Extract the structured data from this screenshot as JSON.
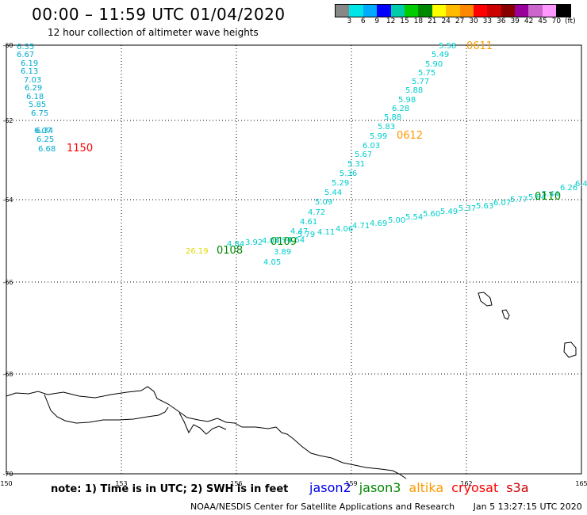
{
  "header": {
    "title": "00:00 – 11:59 UTC 01/04/2020",
    "subtitle": "12 hour collection of altimeter wave heights"
  },
  "color_scale": {
    "colors": [
      "#888888",
      "#00e5e5",
      "#00aaff",
      "#0000ff",
      "#00ccaa",
      "#00cc00",
      "#008800",
      "#ffff00",
      "#ffbb00",
      "#ff8800",
      "#ff0000",
      "#cc0000",
      "#880000",
      "#990099",
      "#cc66cc",
      "#ff99ff",
      "#000000"
    ],
    "labels": [
      "3",
      "6",
      "9",
      "12",
      "15",
      "18",
      "21",
      "24",
      "27",
      "30",
      "33",
      "36",
      "39",
      "42",
      "45",
      "70",
      "(ft)"
    ]
  },
  "map": {
    "lon_ticks": [
      "150",
      "153",
      "156",
      "159",
      "162",
      "165"
    ],
    "lat_ticks": [
      "-60",
      "-62",
      "-64",
      "-66",
      "-68",
      "-70"
    ],
    "tracks": [
      {
        "satellite": "cryosat",
        "label": "1150",
        "label_color": "#ff0000",
        "value_color": "#00aacc",
        "values": [
          "6.35",
          "6.67",
          "6.19",
          "6.13",
          "7.03",
          "6.29",
          "6.18",
          "5.85",
          "6.75",
          "6.07",
          "6.34",
          "6.25",
          "6.68"
        ]
      },
      {
        "satellite": "altika",
        "label": "0611",
        "label_color": "#ff9900",
        "value_color": "#00cccc",
        "values": [
          "5.58",
          "5.49",
          "5.90",
          "5.75",
          "5.77",
          "5.88",
          "5.98",
          "6.28",
          "5.88",
          "5.83",
          "5.99"
        ]
      },
      {
        "satellite": "altika",
        "label": "0612",
        "label_color": "#ff9900",
        "value_color": "#00cccc",
        "values": [
          "6.03",
          "5.67",
          "5.31",
          "5.36",
          "5.29",
          "5.44",
          "5.09",
          "4.72",
          "4.61",
          "4.47",
          "4.54",
          "3.96"
        ]
      },
      {
        "satellite": "jason3",
        "label": "0108",
        "label_color": "#008800",
        "value_color": "#00cccc",
        "values": [
          "26.19",
          "4.84",
          "3.92",
          "4.04",
          "3.89",
          "4.05"
        ]
      },
      {
        "satellite": "jason3",
        "label": "0109",
        "label_color": "#008800",
        "value_color": "#00cccc",
        "values": [
          "5.79",
          "4.11",
          "4.06",
          "4.71",
          "4.69",
          "5.00",
          "5.54",
          "5.60",
          "5.49",
          "5.37",
          "5.63",
          "6.07",
          "5.77",
          "5.84",
          "5.44",
          "6.26",
          "6.47"
        ]
      },
      {
        "satellite": "jason3",
        "label": "0110",
        "label_color": "#008800",
        "value_color": "#00cccc",
        "values": []
      }
    ]
  },
  "footer": {
    "note": "note: 1) Time is in UTC; 2) SWH is in feet",
    "satellites": [
      {
        "name": "jason2",
        "color": "#0000ee"
      },
      {
        "name": "jason3",
        "color": "#008800"
      },
      {
        "name": "altika",
        "color": "#ff9900"
      },
      {
        "name": "cryosat",
        "color": "#ff0000"
      },
      {
        "name": "s3a",
        "color": "#cc0000"
      }
    ],
    "credit": "NOAA/NESDIS Center for Satellite Applications and Research",
    "timestamp": "Jan  5 13:27:15 UTC 2020"
  }
}
